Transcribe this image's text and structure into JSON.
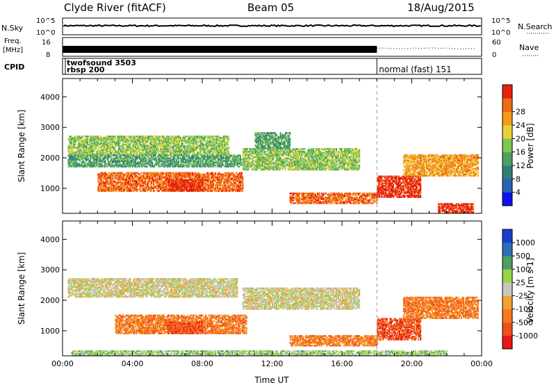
{
  "header": {
    "station": "Clyde River (fitACF)",
    "beam": "Beam 05",
    "date": "18/Aug/2015"
  },
  "strip_labels": {
    "nsky": "N.Sky",
    "nsky_top": "10^5",
    "nsky_bottom": "10^0",
    "freq_line1": "Freq.",
    "freq_line2": "[MHz]",
    "freq_top": "16",
    "freq_bottom": "8",
    "cpid": "CPID",
    "nsearch": "N.Search",
    "nsearch_top": "10^5",
    "nsearch_bottom": "10^0",
    "nave": "Nave",
    "nave_top": "60",
    "nave_bottom": "0"
  },
  "cpid": {
    "mode1_line1": "twofsound 3503",
    "mode1_line2": "rbsp 200",
    "mode2": "normal (fast) 151",
    "switch_hour": 18
  },
  "colors": {
    "power": [
      "#1010f0",
      "#2d5fb4",
      "#2e7f7a",
      "#4f9e64",
      "#7ec850",
      "#e8d23a",
      "#f59a1c",
      "#f06a14",
      "#e82010"
    ],
    "velocity": [
      "#e81818",
      "#f0501a",
      "#f47a1a",
      "#f5a032",
      "#c8c8c0",
      "#9ad44a",
      "#4f9e64",
      "#2d6fb4",
      "#1b3fcc"
    ]
  },
  "chart_data": [
    {
      "type": "heatmap",
      "ylabel": "Slant Range [km]",
      "colorbar_label": "Power [dB]",
      "colorbar_ticks": [
        "4",
        "8",
        "12",
        "16",
        "20",
        "24",
        "28"
      ],
      "y_ticks": [
        "1000",
        "2000",
        "3000",
        "4000"
      ],
      "ylim": [
        180,
        4600
      ],
      "xlim": [
        0,
        24
      ],
      "regions": [
        {
          "t0": 0.3,
          "t1": 9.5,
          "r0": 2100,
          "r1": 2700,
          "level": 4
        },
        {
          "t0": 0.3,
          "t1": 10.2,
          "r0": 1700,
          "r1": 2100,
          "level": 3
        },
        {
          "t0": 2.0,
          "t1": 10.3,
          "r0": 900,
          "r1": 1500,
          "level": 7
        },
        {
          "t0": 6.0,
          "t1": 8.0,
          "r0": 900,
          "r1": 1300,
          "level": 8
        },
        {
          "t0": 10.3,
          "t1": 17.0,
          "r0": 1600,
          "r1": 2300,
          "level": 4
        },
        {
          "t0": 11.0,
          "t1": 13.0,
          "r0": 2300,
          "r1": 2800,
          "level": 3
        },
        {
          "t0": 13.0,
          "t1": 18.0,
          "r0": 500,
          "r1": 850,
          "level": 7
        },
        {
          "t0": 18.0,
          "t1": 20.5,
          "r0": 700,
          "r1": 1400,
          "level": 8
        },
        {
          "t0": 19.5,
          "t1": 23.8,
          "r0": 1400,
          "r1": 2100,
          "level": 6
        },
        {
          "t0": 21.5,
          "t1": 23.5,
          "r0": 200,
          "r1": 500,
          "level": 8
        }
      ]
    },
    {
      "type": "heatmap",
      "ylabel": "Slant Range [km]",
      "xlabel": "Time UT",
      "colorbar_label": "Velocity [m s-1]",
      "colorbar_ticks": [
        "-1000",
        "-500",
        "-100",
        "-25",
        "25",
        "100",
        "500",
        "1000"
      ],
      "x_ticks": [
        "00:00",
        "04:00",
        "08:00",
        "12:00",
        "16:00",
        "20:00",
        "00:00"
      ],
      "y_ticks": [
        "1000",
        "2000",
        "3000",
        "4000"
      ],
      "ylim": [
        180,
        4600
      ],
      "xlim": [
        0,
        24
      ],
      "regions": [
        {
          "t0": 0.3,
          "t1": 10.0,
          "r0": 2100,
          "r1": 2700,
          "level": 4
        },
        {
          "t0": 3.0,
          "t1": 10.5,
          "r0": 900,
          "r1": 1500,
          "level": 2
        },
        {
          "t0": 6.0,
          "t1": 8.0,
          "r0": 900,
          "r1": 1300,
          "level": 1
        },
        {
          "t0": 10.3,
          "t1": 17.0,
          "r0": 1700,
          "r1": 2400,
          "level": 4
        },
        {
          "t0": 13.0,
          "t1": 18.0,
          "r0": 500,
          "r1": 850,
          "level": 2
        },
        {
          "t0": 18.0,
          "t1": 20.5,
          "r0": 700,
          "r1": 1400,
          "level": 1
        },
        {
          "t0": 19.5,
          "t1": 23.8,
          "r0": 1400,
          "r1": 2100,
          "level": 2
        },
        {
          "t0": 0.5,
          "t1": 22.0,
          "r0": 180,
          "r1": 350,
          "level": 5
        }
      ]
    }
  ]
}
